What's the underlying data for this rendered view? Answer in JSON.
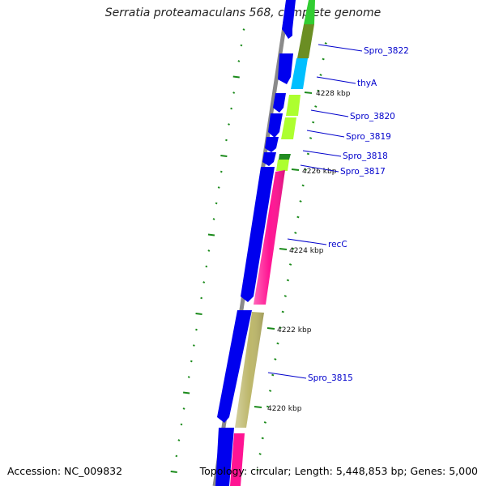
{
  "title": "Serratia proteamaculans 568, complete genome",
  "accession": "Accession: NC_009832",
  "topology": "Topology: circular; Length: 5,448,853 bp; Genes: 5,000",
  "colors": {
    "backbone": "#8a8a8a",
    "cds_strand": "#0000ee",
    "tick": "#1a8a1a",
    "label_line": "#0000cc"
  },
  "kbp_labels": [
    "4228 kbp",
    "4226 kbp",
    "4224 kbp",
    "4222 kbp",
    "4220 kbp"
  ],
  "genes": [
    {
      "label": "Spro_3822",
      "color": "#6b8e23"
    },
    {
      "label": "thyA",
      "color": "#00bfff"
    },
    {
      "label": "Spro_3820",
      "color": "#adff2f"
    },
    {
      "label": "Spro_3819",
      "color": "#adff2f"
    },
    {
      "label": "Spro_3818",
      "color": "#228b22"
    },
    {
      "label": "Spro_3817",
      "color": "#adff2f"
    },
    {
      "label": "recC",
      "color": "#ff1493"
    },
    {
      "label": "Spro_3815",
      "color": "#bdb76b"
    }
  ]
}
